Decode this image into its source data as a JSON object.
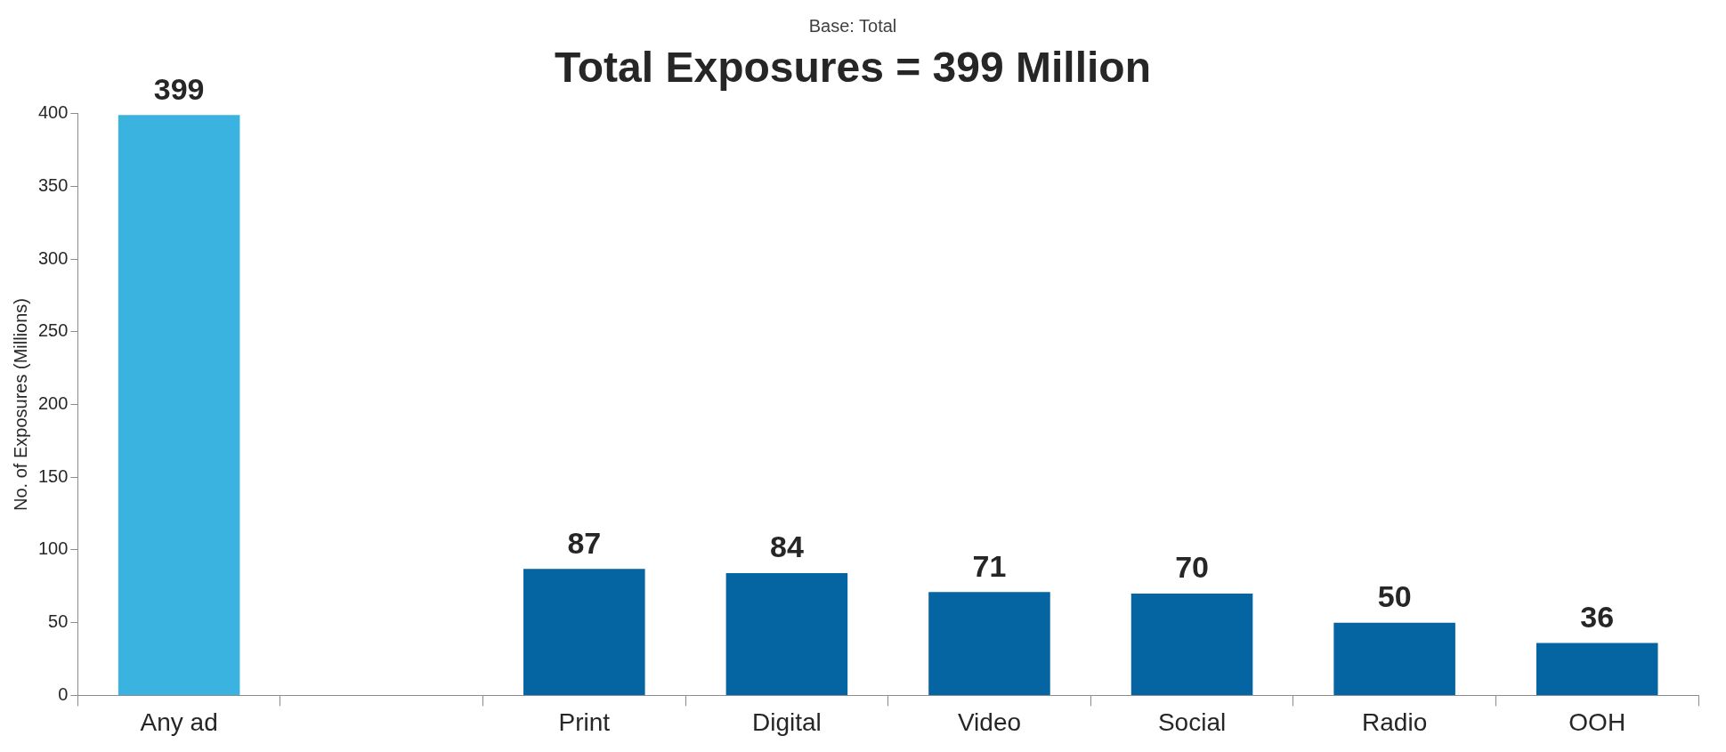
{
  "chart_data": {
    "type": "bar",
    "title": "Total Exposures = 399 Million",
    "subtitle": "Base: Total",
    "ylabel": "No. of Exposures (Millions)",
    "categories": [
      "Any ad",
      null,
      "Print",
      "Digital",
      "Video",
      "Social",
      "Radio",
      "OOH"
    ],
    "values": [
      399,
      null,
      87,
      84,
      71,
      70,
      50,
      36
    ],
    "colors": [
      "#3ab3e0",
      "#0565a3",
      "#0565a3",
      "#0565a3",
      "#0565a3",
      "#0565a3",
      "#0565a3",
      "#0565a3"
    ],
    "ylim": [
      0,
      400
    ],
    "yticks": [
      0,
      50,
      100,
      150,
      200,
      250,
      300,
      350,
      400
    ],
    "grid": false,
    "legend": false,
    "data_labels": true
  }
}
